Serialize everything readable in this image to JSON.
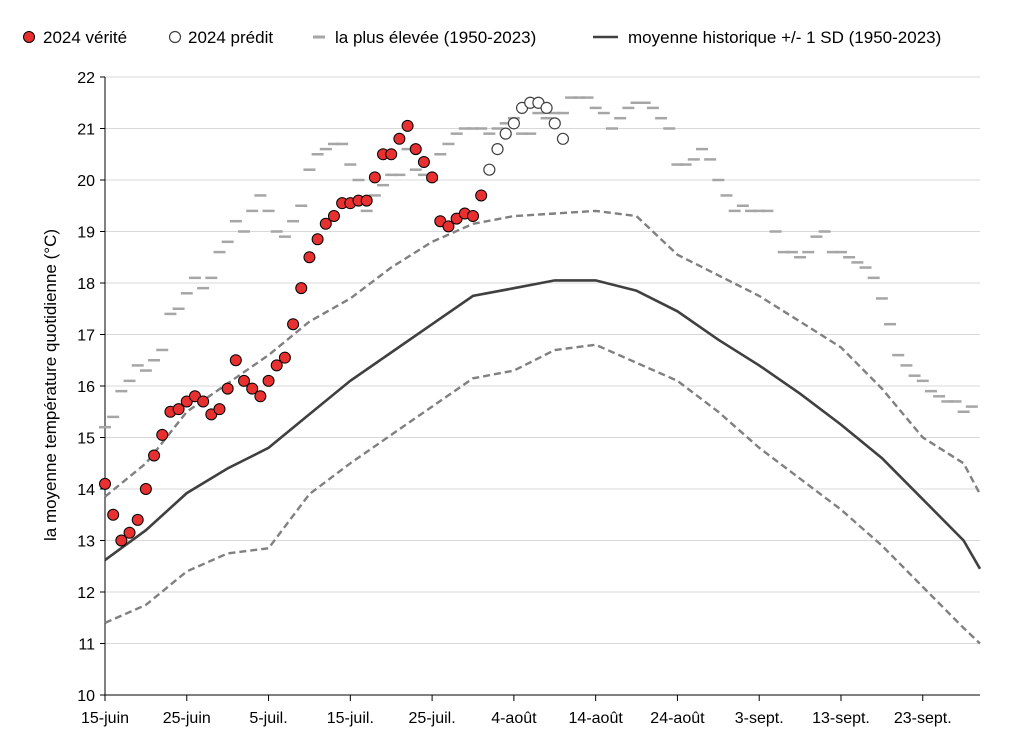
{
  "chart_data": {
    "type": "line",
    "ylabel": "la moyenne température quotidienne (°C)",
    "xlabel": "",
    "ylim": [
      10,
      22
    ],
    "xlim": [
      "2024-06-15",
      "2024-09-30"
    ],
    "yticks": [
      10,
      11,
      12,
      13,
      14,
      15,
      16,
      17,
      18,
      19,
      20,
      21,
      22
    ],
    "xticks": [
      {
        "date": "2024-06-15",
        "label": "15-juin"
      },
      {
        "date": "2024-06-25",
        "label": "25-juin"
      },
      {
        "date": "2024-07-05",
        "label": "5-juil."
      },
      {
        "date": "2024-07-15",
        "label": "15-juil."
      },
      {
        "date": "2024-07-25",
        "label": "25-juil."
      },
      {
        "date": "2024-08-04",
        "label": "4-août"
      },
      {
        "date": "2024-08-14",
        "label": "14-août"
      },
      {
        "date": "2024-08-24",
        "label": "24-août"
      },
      {
        "date": "2024-09-03",
        "label": "3-sept."
      },
      {
        "date": "2024-09-13",
        "label": "13-sept."
      },
      {
        "date": "2024-09-23",
        "label": "23-sept."
      }
    ],
    "grid": "horizontal",
    "legend": "top",
    "series": [
      {
        "name": "2024 vérité",
        "kind": "marker-filled",
        "color": "#e83030",
        "x": [
          "2024-06-15",
          "2024-06-16",
          "2024-06-17",
          "2024-06-18",
          "2024-06-19",
          "2024-06-20",
          "2024-06-21",
          "2024-06-22",
          "2024-06-23",
          "2024-06-24",
          "2024-06-25",
          "2024-06-26",
          "2024-06-27",
          "2024-06-28",
          "2024-06-29",
          "2024-06-30",
          "2024-07-01",
          "2024-07-02",
          "2024-07-03",
          "2024-07-04",
          "2024-07-05",
          "2024-07-06",
          "2024-07-07",
          "2024-07-08",
          "2024-07-09",
          "2024-07-10",
          "2024-07-11",
          "2024-07-12",
          "2024-07-13",
          "2024-07-14",
          "2024-07-15",
          "2024-07-16",
          "2024-07-17",
          "2024-07-18",
          "2024-07-19",
          "2024-07-20",
          "2024-07-21",
          "2024-07-22",
          "2024-07-23",
          "2024-07-24",
          "2024-07-25",
          "2024-07-26",
          "2024-07-27",
          "2024-07-28",
          "2024-07-29",
          "2024-07-30",
          "2024-07-31"
        ],
        "y": [
          14.1,
          13.5,
          13.0,
          13.15,
          13.4,
          14.0,
          14.65,
          15.05,
          15.5,
          15.55,
          15.7,
          15.8,
          15.7,
          15.45,
          15.55,
          15.95,
          16.5,
          16.1,
          15.95,
          15.8,
          16.1,
          16.4,
          16.55,
          17.2,
          17.9,
          18.5,
          18.85,
          19.15,
          19.3,
          19.55,
          19.55,
          19.6,
          19.6,
          20.05,
          20.5,
          20.5,
          20.8,
          21.05,
          20.6,
          20.35,
          20.05,
          19.2,
          19.1,
          19.25,
          19.35,
          19.3,
          19.7
        ]
      },
      {
        "name": "2024 prédit",
        "kind": "marker-open",
        "color": "#404040",
        "x": [
          "2024-08-01",
          "2024-08-02",
          "2024-08-03",
          "2024-08-04",
          "2024-08-05",
          "2024-08-06",
          "2024-08-07",
          "2024-08-08",
          "2024-08-09",
          "2024-08-10"
        ],
        "y": [
          20.2,
          20.6,
          20.9,
          21.1,
          21.4,
          21.5,
          21.5,
          21.4,
          21.1,
          20.8
        ]
      },
      {
        "name": "la plus élevée (1950-2023)",
        "kind": "dash-marker",
        "color": "#a6a6a6",
        "x": [
          "2024-06-15",
          "2024-06-16",
          "2024-06-17",
          "2024-06-18",
          "2024-06-19",
          "2024-06-20",
          "2024-06-21",
          "2024-06-22",
          "2024-06-23",
          "2024-06-24",
          "2024-06-25",
          "2024-06-26",
          "2024-06-27",
          "2024-06-28",
          "2024-06-29",
          "2024-06-30",
          "2024-07-01",
          "2024-07-02",
          "2024-07-03",
          "2024-07-04",
          "2024-07-05",
          "2024-07-06",
          "2024-07-07",
          "2024-07-08",
          "2024-07-09",
          "2024-07-10",
          "2024-07-11",
          "2024-07-12",
          "2024-07-13",
          "2024-07-14",
          "2024-07-15",
          "2024-07-16",
          "2024-07-17",
          "2024-07-18",
          "2024-07-19",
          "2024-07-20",
          "2024-07-21",
          "2024-07-22",
          "2024-07-23",
          "2024-07-24",
          "2024-07-25",
          "2024-07-26",
          "2024-07-27",
          "2024-07-28",
          "2024-07-29",
          "2024-07-30",
          "2024-07-31",
          "2024-08-01",
          "2024-08-02",
          "2024-08-03",
          "2024-08-04",
          "2024-08-05",
          "2024-08-06",
          "2024-08-07",
          "2024-08-08",
          "2024-08-09",
          "2024-08-10",
          "2024-08-11",
          "2024-08-12",
          "2024-08-13",
          "2024-08-14",
          "2024-08-15",
          "2024-08-16",
          "2024-08-17",
          "2024-08-18",
          "2024-08-19",
          "2024-08-20",
          "2024-08-21",
          "2024-08-22",
          "2024-08-23",
          "2024-08-24",
          "2024-08-25",
          "2024-08-26",
          "2024-08-27",
          "2024-08-28",
          "2024-08-29",
          "2024-08-30",
          "2024-08-31",
          "2024-09-01",
          "2024-09-02",
          "2024-09-03",
          "2024-09-04",
          "2024-09-05",
          "2024-09-06",
          "2024-09-07",
          "2024-09-08",
          "2024-09-09",
          "2024-09-10",
          "2024-09-11",
          "2024-09-12",
          "2024-09-13",
          "2024-09-14",
          "2024-09-15",
          "2024-09-16",
          "2024-09-17",
          "2024-09-18",
          "2024-09-19",
          "2024-09-20",
          "2024-09-21",
          "2024-09-22",
          "2024-09-23",
          "2024-09-24",
          "2024-09-25",
          "2024-09-26",
          "2024-09-27",
          "2024-09-28",
          "2024-09-29"
        ],
        "y": [
          15.2,
          15.4,
          15.9,
          16.1,
          16.4,
          16.3,
          16.5,
          16.7,
          17.4,
          17.5,
          17.8,
          18.1,
          17.9,
          18.1,
          18.6,
          18.8,
          19.2,
          19.0,
          19.4,
          19.7,
          19.4,
          19.0,
          18.9,
          19.2,
          19.5,
          20.2,
          20.5,
          20.6,
          20.7,
          20.7,
          20.3,
          20.0,
          19.4,
          19.7,
          19.9,
          20.1,
          20.1,
          20.6,
          20.2,
          20.1,
          20.0,
          20.5,
          20.7,
          20.9,
          21.0,
          21.0,
          21.0,
          20.9,
          21.0,
          21.1,
          21.2,
          20.9,
          20.9,
          21.3,
          21.2,
          21.3,
          21.3,
          21.6,
          21.6,
          21.6,
          21.4,
          21.3,
          21.0,
          21.2,
          21.4,
          21.5,
          21.5,
          21.4,
          21.2,
          21.0,
          20.3,
          20.3,
          20.4,
          20.6,
          20.4,
          20.0,
          19.7,
          19.4,
          19.5,
          19.4,
          19.4,
          19.4,
          19.0,
          18.6,
          18.6,
          18.5,
          18.6,
          18.9,
          19.0,
          18.6,
          18.6,
          18.5,
          18.4,
          18.3,
          18.1,
          17.7,
          17.2,
          16.6,
          16.4,
          16.2,
          16.1,
          15.9,
          15.8,
          15.7,
          15.7,
          15.5,
          15.6
        ]
      },
      {
        "name": "moyenne historique +/- 1 SD (1950-2023)",
        "kind": "line",
        "color": "#404040",
        "x": [
          "2024-06-15",
          "2024-06-20",
          "2024-06-25",
          "2024-06-30",
          "2024-07-05",
          "2024-07-10",
          "2024-07-15",
          "2024-07-20",
          "2024-07-25",
          "2024-07-30",
          "2024-08-04",
          "2024-08-09",
          "2024-08-14",
          "2024-08-19",
          "2024-08-24",
          "2024-08-29",
          "2024-09-03",
          "2024-09-08",
          "2024-09-13",
          "2024-09-18",
          "2024-09-23",
          "2024-09-28",
          "2024-09-30"
        ],
        "y": [
          12.62,
          13.2,
          13.92,
          14.4,
          14.8,
          15.45,
          16.1,
          16.65,
          17.2,
          17.75,
          17.9,
          18.05,
          18.05,
          17.85,
          17.45,
          16.9,
          16.4,
          15.85,
          15.25,
          14.6,
          13.8,
          13.0,
          12.45
        ]
      },
      {
        "name": "+1 SD",
        "kind": "dashed-line",
        "color": "#808080",
        "x": [
          "2024-06-15",
          "2024-06-20",
          "2024-06-25",
          "2024-06-30",
          "2024-07-05",
          "2024-07-10",
          "2024-07-15",
          "2024-07-20",
          "2024-07-25",
          "2024-07-30",
          "2024-08-04",
          "2024-08-09",
          "2024-08-14",
          "2024-08-19",
          "2024-08-24",
          "2024-08-29",
          "2024-09-03",
          "2024-09-08",
          "2024-09-13",
          "2024-09-18",
          "2024-09-23",
          "2024-09-28",
          "2024-09-30"
        ],
        "y": [
          13.85,
          14.5,
          15.5,
          16.05,
          16.6,
          17.25,
          17.7,
          18.3,
          18.8,
          19.15,
          19.3,
          19.35,
          19.4,
          19.3,
          18.55,
          18.15,
          17.75,
          17.25,
          16.75,
          15.95,
          15.0,
          14.5,
          13.9
        ]
      },
      {
        "name": "-1 SD",
        "kind": "dashed-line",
        "color": "#808080",
        "x": [
          "2024-06-15",
          "2024-06-20",
          "2024-06-25",
          "2024-06-30",
          "2024-07-05",
          "2024-07-10",
          "2024-07-15",
          "2024-07-20",
          "2024-07-25",
          "2024-07-30",
          "2024-08-04",
          "2024-08-09",
          "2024-08-14",
          "2024-08-19",
          "2024-08-24",
          "2024-08-29",
          "2024-09-03",
          "2024-09-08",
          "2024-09-13",
          "2024-09-18",
          "2024-09-23",
          "2024-09-28",
          "2024-09-30"
        ],
        "y": [
          11.4,
          11.75,
          12.4,
          12.75,
          12.85,
          13.9,
          14.5,
          15.05,
          15.6,
          16.15,
          16.3,
          16.7,
          16.8,
          16.45,
          16.1,
          15.5,
          14.8,
          14.2,
          13.6,
          12.9,
          12.1,
          11.3,
          11.0
        ]
      }
    ]
  }
}
